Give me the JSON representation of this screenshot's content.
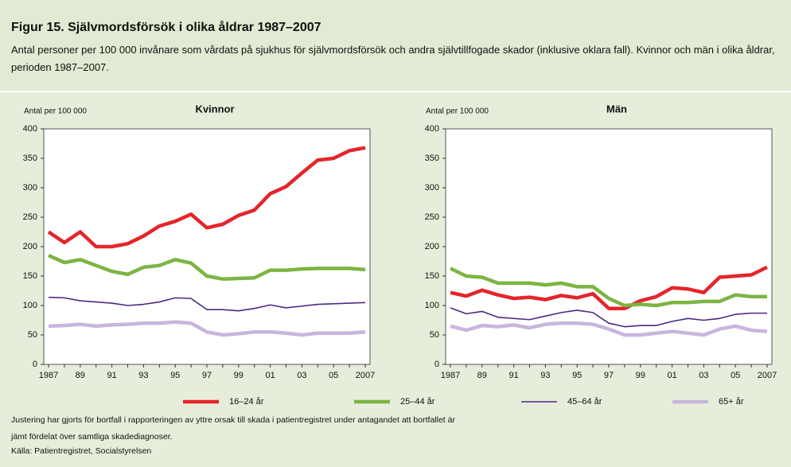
{
  "figure": {
    "title": "Figur 15. Självmordsförsök i olika åldrar 1987–2007",
    "subtitle": "Antal personer per 100 000 invånare som vårdats på sjukhus för självmordsförsök och andra självtillfogade skador (inklusive oklara fall). Kvinnor och män i olika åldrar, perioden 1987–2007.",
    "note": "Justering har gjorts för bortfall i rapporteringen av yttre orsak till skada i patientregistret under antagandet att bortfallet är jämt fördelat över samtliga skadediagnoser.",
    "source": "Källa: Patientregistret, Socialstyrelsen"
  },
  "chart_data": [
    {
      "type": "line",
      "title": "Kvinnor",
      "ylabel": "Antal per 100 000",
      "grid": false,
      "ylim": [
        0,
        400
      ],
      "yticks": [
        0,
        50,
        100,
        150,
        200,
        250,
        300,
        350,
        400
      ],
      "categories": [
        "1987",
        null,
        "89",
        null,
        "91",
        null,
        "93",
        null,
        "95",
        null,
        "97",
        null,
        "99",
        null,
        "01",
        null,
        "03",
        null,
        "05",
        null,
        "2007"
      ],
      "series": [
        {
          "name": "16–24 år",
          "color": "#e4252c",
          "values": [
            225,
            207,
            225,
            200,
            200,
            205,
            218,
            235,
            243,
            255,
            232,
            238,
            253,
            262,
            290,
            302,
            325,
            347,
            350,
            363,
            368
          ]
        },
        {
          "name": "25–44 år",
          "color": "#7db442",
          "values": [
            185,
            173,
            178,
            168,
            158,
            153,
            165,
            168,
            178,
            172,
            150,
            145,
            146,
            147,
            160,
            160,
            162,
            163,
            163,
            163,
            161
          ]
        },
        {
          "name": "45–64 år",
          "color": "#4b2a83",
          "values": [
            114,
            113,
            108,
            106,
            104,
            100,
            102,
            106,
            113,
            112,
            93,
            93,
            91,
            95,
            101,
            96,
            99,
            102,
            103,
            104,
            105
          ]
        },
        {
          "name": "65+ år",
          "color": "#c8b6de",
          "values": [
            65,
            66,
            68,
            65,
            67,
            68,
            70,
            70,
            72,
            70,
            55,
            50,
            52,
            55,
            55,
            53,
            50,
            53,
            53,
            53,
            55
          ]
        }
      ]
    },
    {
      "type": "line",
      "title": "Män",
      "ylabel": "Antal per 100 000",
      "grid": false,
      "ylim": [
        0,
        400
      ],
      "yticks": [
        0,
        50,
        100,
        150,
        200,
        250,
        300,
        350,
        400
      ],
      "categories": [
        "1987",
        null,
        "89",
        null,
        "91",
        null,
        "93",
        null,
        "95",
        null,
        "97",
        null,
        "99",
        null,
        "01",
        null,
        "03",
        null,
        "05",
        null,
        "2007"
      ],
      "series": [
        {
          "name": "16–24 år",
          "color": "#e4252c",
          "values": [
            122,
            116,
            126,
            118,
            112,
            114,
            110,
            117,
            113,
            120,
            95,
            95,
            108,
            115,
            130,
            128,
            122,
            148,
            150,
            152,
            165
          ]
        },
        {
          "name": "25–44 år",
          "color": "#7db442",
          "values": [
            163,
            150,
            148,
            138,
            138,
            138,
            135,
            138,
            132,
            132,
            112,
            100,
            102,
            100,
            105,
            105,
            107,
            107,
            118,
            115,
            115
          ]
        },
        {
          "name": "45–64 år",
          "color": "#4b2a83",
          "values": [
            96,
            86,
            90,
            80,
            78,
            76,
            82,
            88,
            92,
            88,
            70,
            64,
            66,
            66,
            73,
            78,
            75,
            78,
            85,
            87,
            87
          ]
        },
        {
          "name": "65+ år",
          "color": "#c8b6de",
          "values": [
            65,
            58,
            66,
            64,
            67,
            62,
            68,
            70,
            70,
            68,
            60,
            50,
            50,
            53,
            56,
            53,
            50,
            60,
            65,
            58,
            56
          ]
        }
      ]
    }
  ]
}
